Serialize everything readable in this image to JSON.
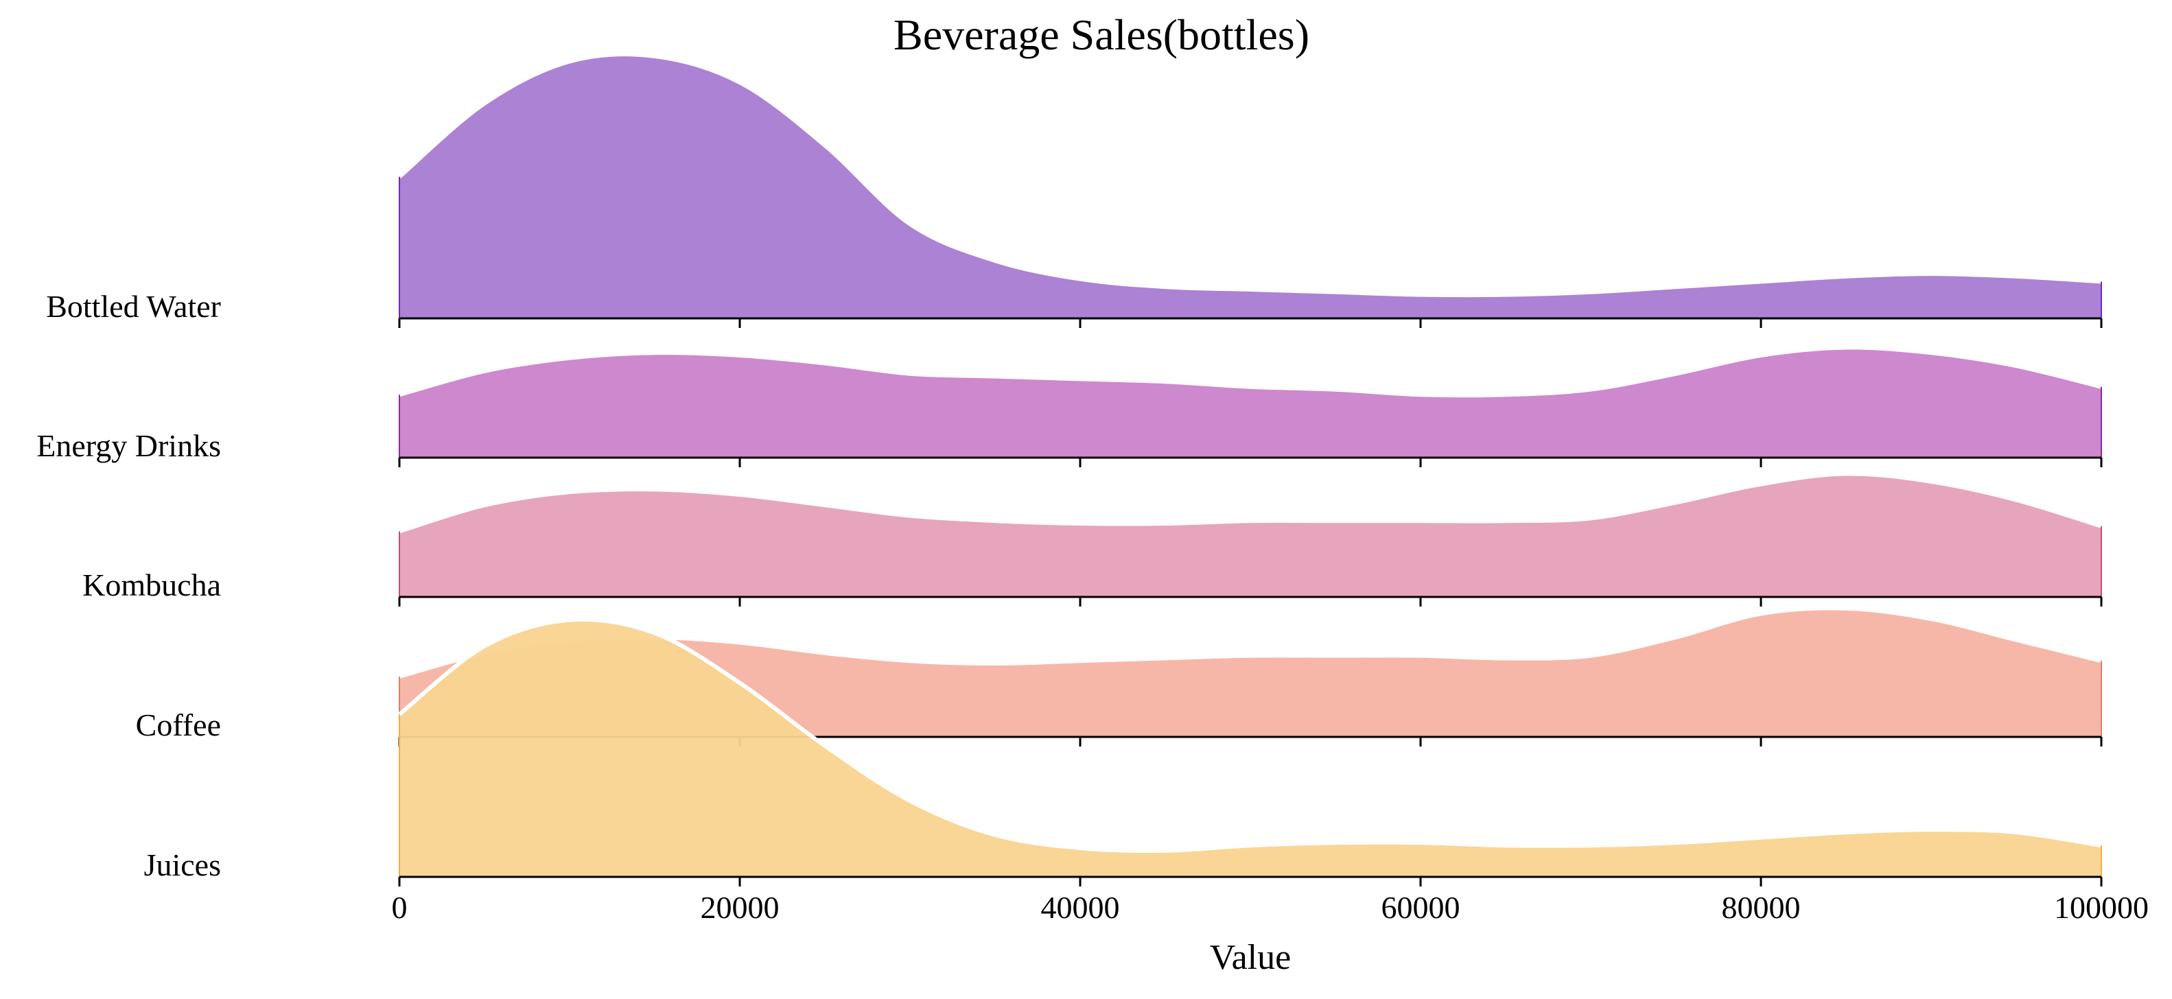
{
  "chart_data": {
    "type": "area",
    "subtype": "ridgeline",
    "title": "Beverage Sales(bottles)",
    "xlabel": "Value",
    "ylabel": "",
    "xlim": [
      0,
      100000
    ],
    "xticks": [
      "0",
      "20000",
      "40000",
      "60000",
      "80000",
      "100000"
    ],
    "xtick_values": [
      0,
      20000,
      40000,
      60000,
      80000,
      100000
    ],
    "grid": false,
    "legend": "none",
    "x": [
      0,
      5000,
      10000,
      15000,
      20000,
      25000,
      30000,
      35000,
      40000,
      45000,
      50000,
      55000,
      60000,
      65000,
      70000,
      75000,
      80000,
      85000,
      90000,
      95000,
      100000
    ],
    "series": [
      {
        "name": "Bottled Water",
        "color": "#a77bd2",
        "edge_color": "#6a2db8",
        "values": [
          0.54,
          0.82,
          0.98,
          1.0,
          0.9,
          0.66,
          0.36,
          0.22,
          0.15,
          0.12,
          0.11,
          0.1,
          0.09,
          0.09,
          0.1,
          0.12,
          0.14,
          0.16,
          0.17,
          0.16,
          0.14
        ]
      },
      {
        "name": "Energy Drinks",
        "color": "#cb82cb",
        "edge_color": "#8a2aa0",
        "values": [
          0.24,
          0.33,
          0.38,
          0.4,
          0.39,
          0.36,
          0.32,
          0.31,
          0.3,
          0.29,
          0.27,
          0.26,
          0.24,
          0.24,
          0.26,
          0.32,
          0.39,
          0.42,
          0.4,
          0.35,
          0.27
        ]
      },
      {
        "name": "Kombucha",
        "color": "#e5a0b8",
        "edge_color": "#c0507a",
        "values": [
          0.25,
          0.35,
          0.4,
          0.41,
          0.39,
          0.35,
          0.31,
          0.29,
          0.28,
          0.28,
          0.29,
          0.29,
          0.29,
          0.29,
          0.3,
          0.36,
          0.43,
          0.47,
          0.44,
          0.37,
          0.27
        ]
      },
      {
        "name": "Coffee",
        "color": "#f5b3a4",
        "edge_color": "#d8806a",
        "values": [
          0.23,
          0.32,
          0.37,
          0.38,
          0.36,
          0.32,
          0.29,
          0.28,
          0.29,
          0.3,
          0.31,
          0.31,
          0.31,
          0.3,
          0.31,
          0.38,
          0.47,
          0.49,
          0.45,
          0.37,
          0.29
        ]
      },
      {
        "name": "Juices",
        "color": "#f9d48f",
        "edge_color": "#f0b040",
        "values": [
          0.62,
          0.88,
          0.98,
          0.93,
          0.74,
          0.5,
          0.29,
          0.16,
          0.11,
          0.1,
          0.12,
          0.13,
          0.13,
          0.12,
          0.12,
          0.13,
          0.15,
          0.17,
          0.18,
          0.17,
          0.12
        ]
      }
    ]
  }
}
